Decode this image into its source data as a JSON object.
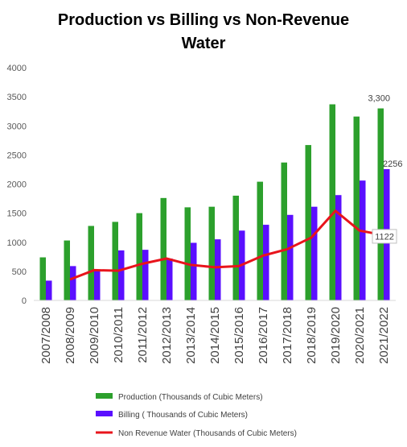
{
  "chart_data": {
    "type": "bar",
    "title_line1": "Production vs Billing vs Non-Revenue",
    "title_line2": "Water",
    "categories": [
      "2007/2008",
      "2008/2009",
      "2009/2010",
      "2010/2011",
      "2011/2012",
      "2012/2013",
      "2013/2014",
      "2014/2015",
      "2015/2016",
      "2016/2017",
      "2017/2018",
      "2018/2019",
      "2019/2020",
      "2020/2021",
      "2021/2022"
    ],
    "ylim": [
      0,
      4000
    ],
    "yticks": [
      0,
      500,
      1000,
      1500,
      2000,
      2500,
      3000,
      3500,
      4000
    ],
    "grid": false,
    "legend_position": "bottom",
    "series": [
      {
        "name": "Production (Thousands of Cubic Meters)",
        "type": "bar",
        "color": "#2ca02c",
        "values": [
          740,
          1030,
          1280,
          1350,
          1500,
          1760,
          1600,
          1610,
          1800,
          2040,
          2370,
          2670,
          3370,
          3160,
          3300
        ]
      },
      {
        "name": "Billing ( Thousands of Cubic Meters)",
        "type": "bar",
        "color": "#5a0fff",
        "values": [
          340,
          590,
          500,
          860,
          870,
          720,
          990,
          1050,
          1200,
          1300,
          1470,
          1610,
          1810,
          2060,
          2256
        ]
      },
      {
        "name": "Non Revenue Water  (Thousands of Cubic Meters)",
        "type": "line",
        "color": "#e8141c",
        "values": [
          null,
          360,
          520,
          510,
          630,
          720,
          610,
          570,
          590,
          770,
          880,
          1080,
          1540,
          1200,
          1122
        ]
      }
    ],
    "data_labels": [
      {
        "series": 0,
        "index": 14,
        "text": "3,300"
      },
      {
        "series": 1,
        "index": 14,
        "text": "2256"
      },
      {
        "series": 2,
        "index": 14,
        "text": "1122"
      }
    ]
  }
}
